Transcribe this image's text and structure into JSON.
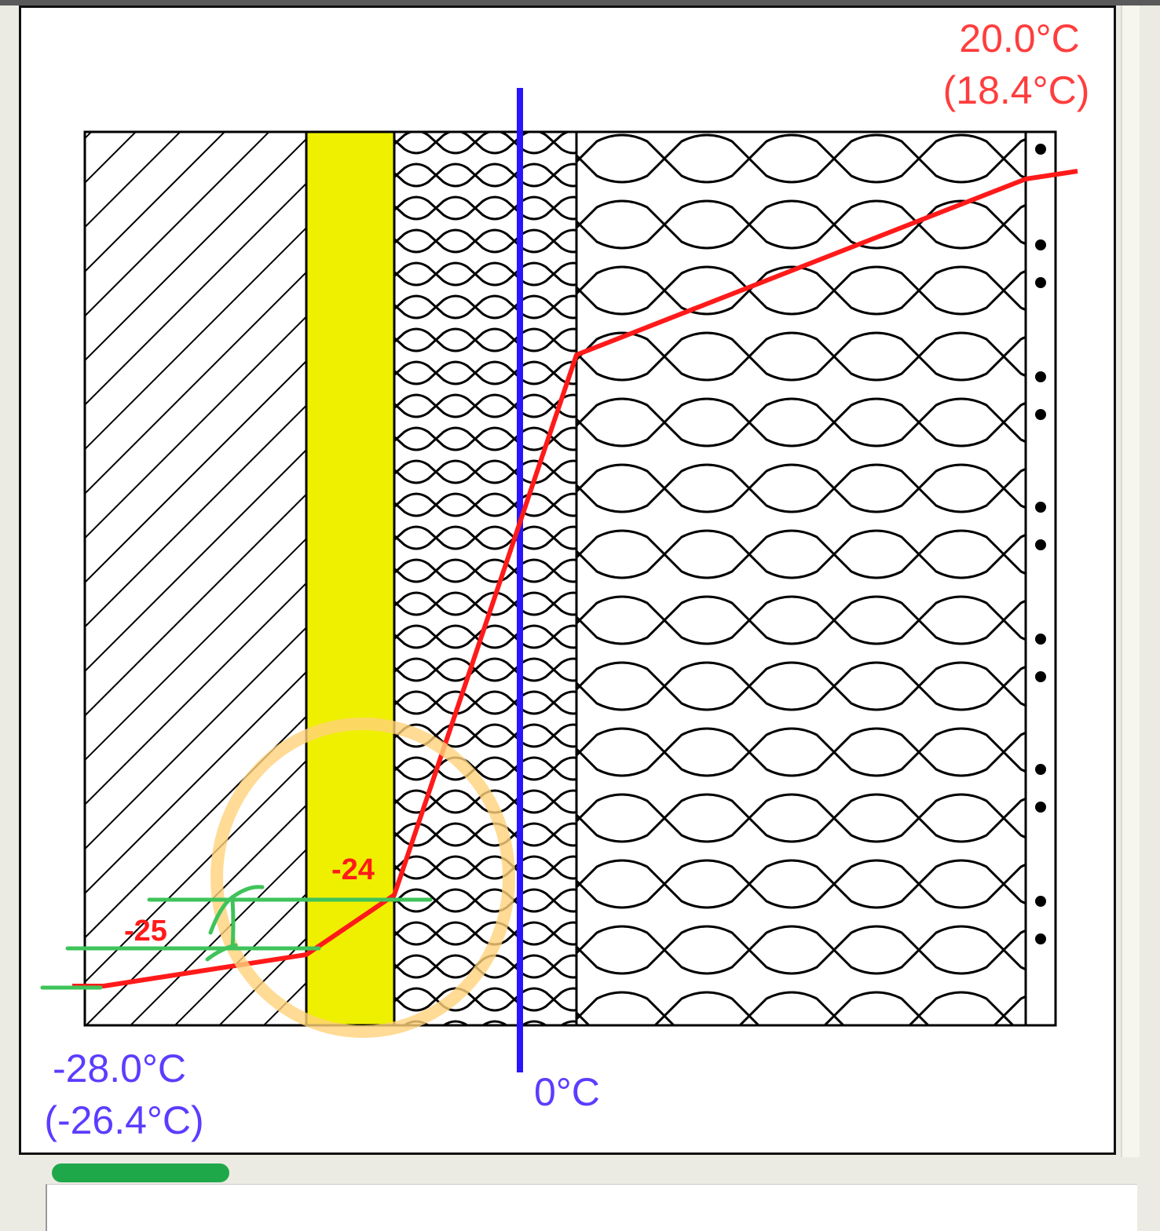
{
  "labels": {
    "inside_temp": "20.0°C",
    "inside_temp_alt": "(18.4°C)",
    "outside_temp": "-28.0°C",
    "outside_temp_alt": "(-26.4°C)",
    "zero_line": "0°C"
  },
  "annotations": {
    "mark_upper": "-24",
    "mark_lower": "-25"
  },
  "colors": {
    "temperature_line": "#ff1a1a",
    "zero_line": "#2a14ff",
    "membrane_layer": "#eef000",
    "annotation_circle": "#ffd27a",
    "annotation_lines": "#3fc35a",
    "warm_label": "#ff3d3d",
    "cold_label": "#5a3dff"
  },
  "layers": [
    "hatched-masonry",
    "yellow-membrane",
    "insulation",
    "insulation",
    "dotted-lining"
  ]
}
